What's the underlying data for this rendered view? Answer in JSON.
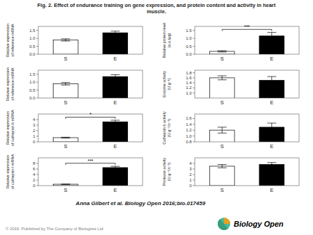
{
  "title": "Fig. 2. Effect of endurance training on gene expression, and protein content and activity in heart\nmuscle.",
  "annotations": [
    "Anna Gilbert et al. Biology Open 2016;bio.017459",
    "© 2016. Published by The Company of Biologists Ltd",
    "Biology Open"
  ],
  "chart_data": [
    {
      "type": "bar",
      "ylabel": "Relative expression\nof reference mRNA",
      "categories": [
        "S",
        "E"
      ],
      "values": [
        0.9,
        1.35
      ],
      "errors": [
        0.07,
        0.1
      ],
      "colors": [
        "white",
        "black"
      ],
      "ylim": [
        0,
        1.75
      ],
      "yticks": [
        {
          "value": 0,
          "label": "0.0"
        },
        0.5,
        {
          "value": 1.0,
          "label": "1.0"
        },
        1.5
      ]
    },
    {
      "type": "bar",
      "ylabel": "Relative protein level\n(a.u./μg)",
      "categories": [
        "S",
        "E"
      ],
      "values": [
        0.18,
        1.15
      ],
      "errors": [
        0.04,
        0.22
      ],
      "colors": [
        "white",
        "black"
      ],
      "ylim": [
        0,
        1.75
      ],
      "yticks": [
        {
          "value": 0,
          "label": "0.0"
        },
        0.5,
        {
          "value": 1.0,
          "label": "1.0"
        },
        1.5
      ],
      "annotations": [
        "***"
      ]
    },
    {
      "type": "bar",
      "ylabel": "Relative expression\nof reference mRNA",
      "categories": [
        "S",
        "E"
      ],
      "values": [
        0.9,
        1.35
      ],
      "errors": [
        0.08,
        0.12
      ],
      "colors": [
        "white",
        "black"
      ],
      "ylim": [
        0,
        1.75
      ],
      "yticks": [
        {
          "value": 0,
          "label": "0.0"
        },
        0.5,
        {
          "value": 1.0,
          "label": "1.0"
        },
        1.5
      ]
    },
    {
      "type": "bar",
      "ylabel": "Enzyme activity\n(U.g⁻¹)",
      "categories": [
        "S",
        "E"
      ],
      "values": [
        1.6,
        1.5
      ],
      "errors": [
        0.08,
        0.15
      ],
      "colors": [
        "white",
        "black"
      ],
      "ylim": [
        0.8,
        1.9
      ],
      "yticks": [
        {
          "value": 1.0,
          "label": "1.0"
        },
        1.2,
        1.4,
        1.6,
        1.8
      ]
    },
    {
      "type": "bar",
      "ylabel": "Relative expression\nof cathepsin b mRNA",
      "categories": [
        "S",
        "E"
      ],
      "values": [
        0.75,
        3.6
      ],
      "errors": [
        0.08,
        0.28
      ],
      "colors": [
        "white",
        "black"
      ],
      "ylim": [
        0,
        5
      ],
      "yticks": [
        0,
        1,
        2,
        3,
        4
      ],
      "annotations": [
        "*"
      ]
    },
    {
      "type": "bar",
      "ylabel": "Cathepsin b activity\n(U.g⁻¹.h⁻¹)",
      "categories": [
        "S",
        "E"
      ],
      "values": [
        1.2,
        1.3
      ],
      "errors": [
        0.1,
        0.14
      ],
      "colors": [
        "white",
        "black"
      ],
      "ylim": [
        0.8,
        1.75
      ],
      "yticks": [
        0.8,
        {
          "value": 1.0,
          "label": "1.0"
        },
        1.2,
        1.4,
        1.6
      ]
    },
    {
      "type": "bar",
      "ylabel": "Relative expression\nof cathepsin l mRNA",
      "categories": [
        "S",
        "E"
      ],
      "values": [
        0.5,
        6.5
      ],
      "errors": [
        0.06,
        0.45
      ],
      "colors": [
        "white",
        "black"
      ],
      "ylim": [
        0,
        10
      ],
      "yticks": [
        0,
        2,
        4,
        6,
        8
      ],
      "annotations": [
        "***"
      ]
    },
    {
      "type": "bar",
      "ylabel": "Protease activity\n(U.g⁻¹.h⁻¹)",
      "categories": [
        "S",
        "E"
      ],
      "values": [
        3.5,
        3.8
      ],
      "errors": [
        0.3,
        0.35
      ],
      "colors": [
        "white",
        "black"
      ],
      "ylim": [
        0,
        5
      ],
      "yticks": [
        0,
        1,
        2,
        3,
        4
      ]
    }
  ]
}
